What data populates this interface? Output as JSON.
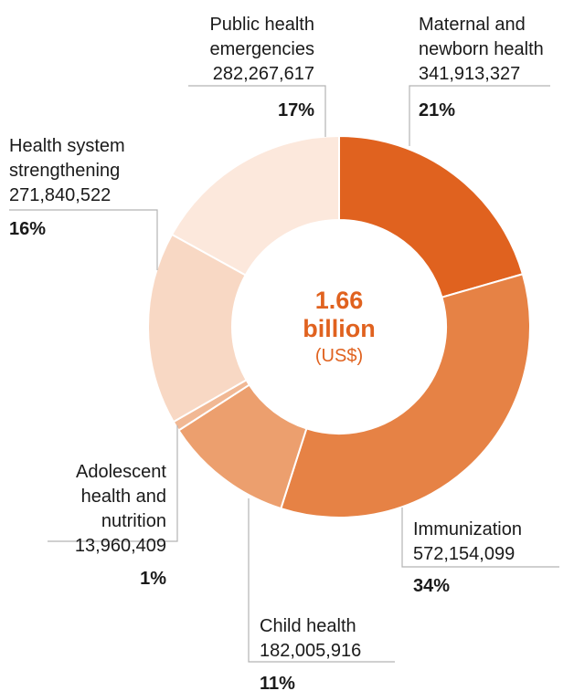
{
  "chart_data": {
    "type": "pie",
    "title": "",
    "center": {
      "line1": "1.66",
      "line2": "billion",
      "line3": "(US$)"
    },
    "slices": [
      {
        "name_lines": [
          "Maternal and",
          "newborn health"
        ],
        "value": 341913327,
        "value_label": "341,913,327",
        "percent_label": "21%",
        "color": "#e0621f"
      },
      {
        "name_lines": [
          "Immunization"
        ],
        "value": 572154099,
        "value_label": "572,154,099",
        "percent_label": "34%",
        "color": "#e68245"
      },
      {
        "name_lines": [
          "Child health"
        ],
        "value": 182005916,
        "value_label": "182,005,916",
        "percent_label": "11%",
        "color": "#ec9f6e"
      },
      {
        "name_lines": [
          "Adolescent",
          "health and",
          "nutrition"
        ],
        "value": 13960409,
        "value_label": "13,960,409",
        "percent_label": "1%",
        "color": "#f1b894"
      },
      {
        "name_lines": [
          "Health system",
          "strengthening"
        ],
        "value": 271840522,
        "value_label": "271,840,522",
        "percent_label": "16%",
        "color": "#f8d8c4"
      },
      {
        "name_lines": [
          "Public health",
          "emergencies"
        ],
        "value": 282267617,
        "value_label": "282,267,617",
        "percent_label": "17%",
        "color": "#fce8dc"
      }
    ]
  },
  "colors": {
    "center_text": "#e0621f",
    "leader": "#b3b3b3",
    "background": "#ffffff"
  }
}
